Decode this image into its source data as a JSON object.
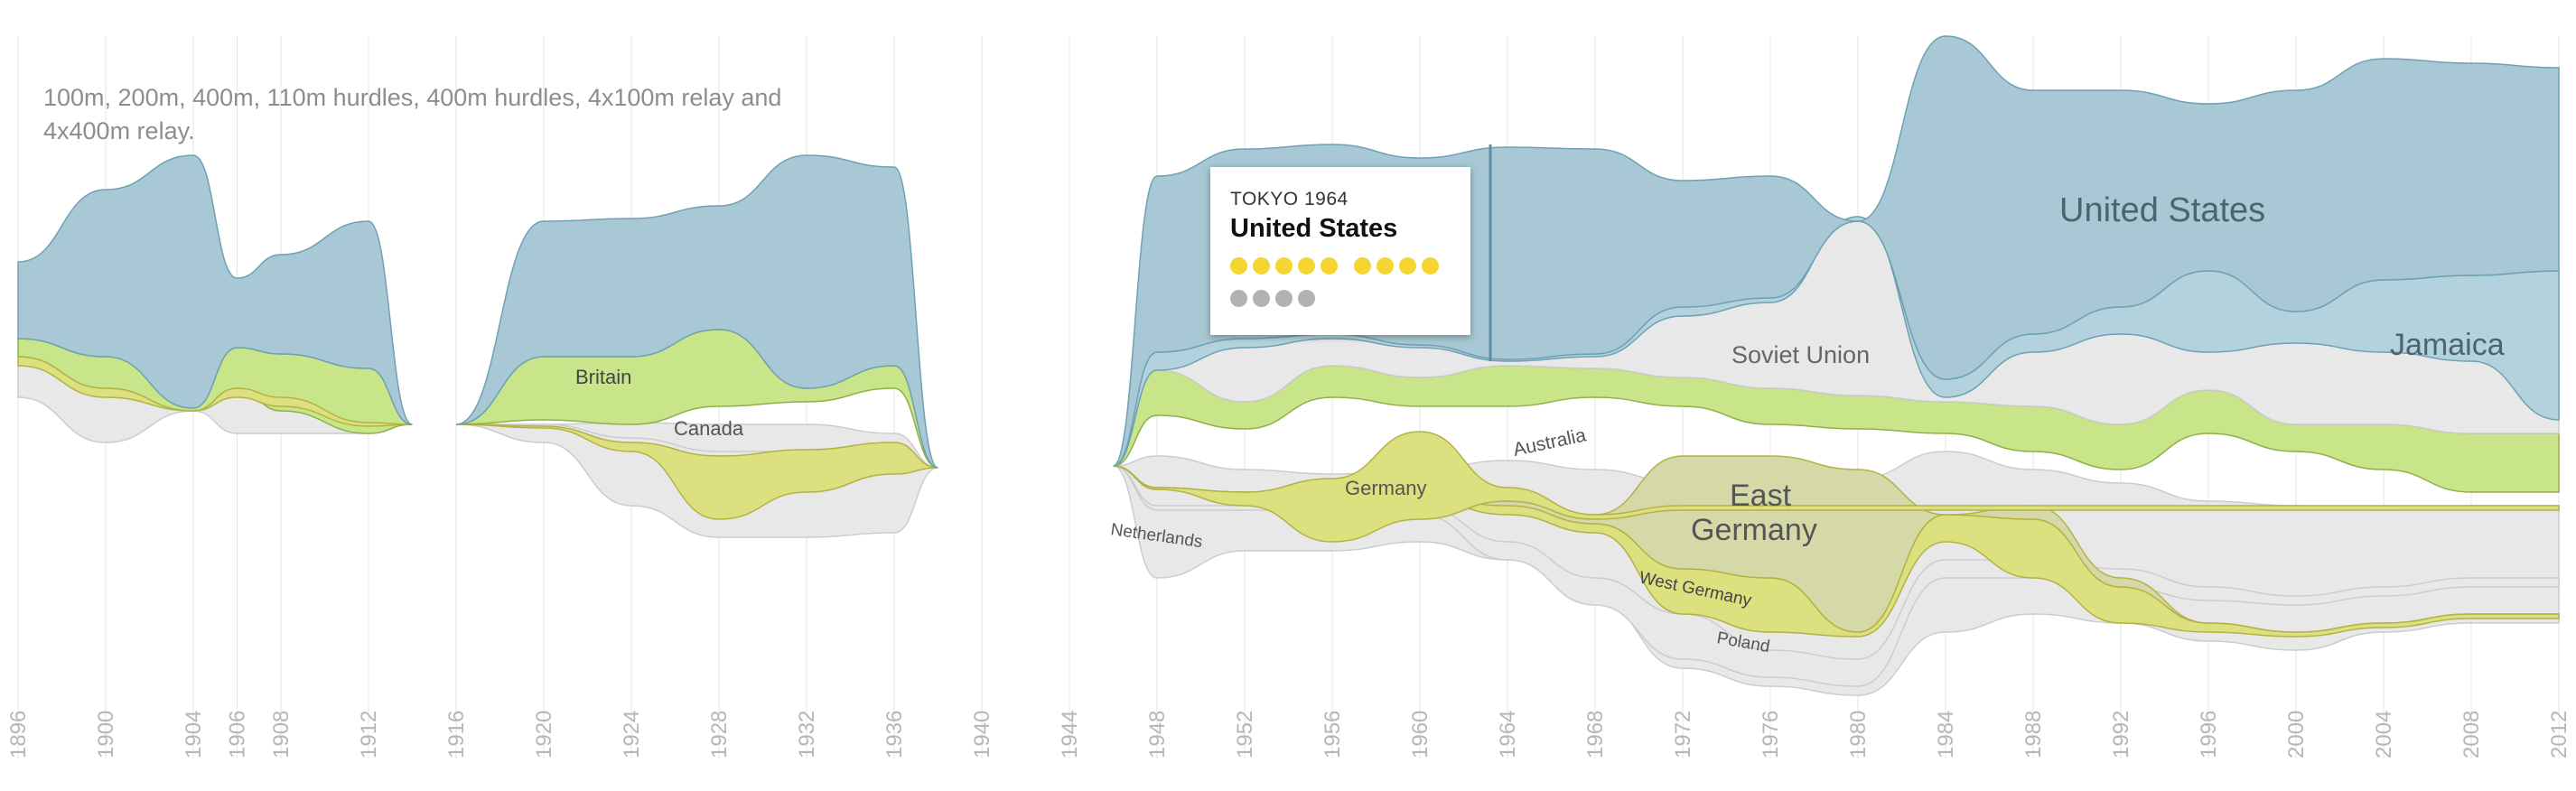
{
  "note": "100m, 200m, 400m, 110m hurdles, 400m hurdles, 4x100m relay and 4x400m relay.",
  "tooltip": {
    "event": "TOKYO 1964",
    "country": "United States",
    "medals": [
      {
        "type": "gold",
        "count": 5
      },
      {
        "type": "gold",
        "count": 4
      },
      {
        "type": "other",
        "count": 4
      }
    ]
  },
  "colors": {
    "us": "#a7c8d4",
    "us_line": "#6fa1b5",
    "jamaica": "#b4d2dd",
    "britain": "#c9e58a",
    "britain_line": "#8fb04a",
    "germany": "#dde07f",
    "germany_line": "#b2b344",
    "east_germany": "#d5d9a7",
    "other": "#e8e8e8",
    "other_line": "#cccccc",
    "grid": "#e6e6e6"
  },
  "chart_data": {
    "type": "area",
    "title": "",
    "xlabel": "",
    "ylabel": "",
    "x_ticks": [
      1896,
      1900,
      1904,
      1906,
      1908,
      1912,
      1916,
      1920,
      1924,
      1928,
      1932,
      1936,
      1940,
      1944,
      1948,
      1952,
      1956,
      1960,
      1964,
      1968,
      1972,
      1976,
      1980,
      1984,
      1988,
      1992,
      1996,
      2000,
      2004,
      2008,
      2012
    ],
    "games_without_data": [
      1916,
      1940,
      1944
    ],
    "highlighted_year": 1964,
    "series": [
      {
        "name": "United States",
        "x": [
          1896,
          1900,
          1904,
          1906,
          1908,
          1912,
          1920,
          1924,
          1928,
          1932,
          1936,
          1948,
          1952,
          1956,
          1960,
          1964,
          1968,
          1972,
          1976,
          1980,
          1984,
          1988,
          1992,
          1996,
          2000,
          2004,
          2008,
          2012
        ],
        "values": [
          6,
          9,
          15,
          4,
          5,
          8,
          8,
          8,
          8,
          10,
          9,
          9,
          10,
          10,
          9,
          13,
          12,
          10,
          11,
          0,
          16,
          12,
          11,
          10,
          8,
          10,
          9,
          9
        ]
      },
      {
        "name": "Jamaica",
        "x": [
          1948,
          1952,
          1956,
          1960,
          1964,
          1968,
          1972,
          1976,
          1980,
          1984,
          1988,
          1992,
          1996,
          2000,
          2004,
          2008,
          2012
        ],
        "values": [
          1,
          2,
          0,
          0,
          0,
          0,
          0,
          1,
          1,
          2,
          2,
          1,
          2,
          4,
          2,
          4,
          4
        ]
      },
      {
        "name": "Soviet Union",
        "x": [
          1952,
          1956,
          1960,
          1964,
          1968,
          1972,
          1976,
          1980,
          1984,
          1988,
          1992
        ],
        "values": [
          1,
          1,
          1,
          1,
          1,
          2,
          2,
          7,
          0,
          2,
          2
        ]
      },
      {
        "name": "Britain",
        "x": [
          1896,
          1900,
          1904,
          1906,
          1908,
          1912,
          1920,
          1924,
          1928,
          1932,
          1936,
          1948,
          1952,
          1956,
          1960,
          1964,
          1968,
          1972,
          1976,
          1980,
          1984,
          1988,
          1992,
          1996,
          2000,
          2004,
          2008,
          2012
        ],
        "values": [
          1,
          1,
          0,
          2,
          2,
          1,
          3,
          3,
          3,
          2,
          3,
          2,
          1,
          2,
          2,
          2,
          2,
          2,
          1,
          1,
          1,
          2,
          2,
          3,
          1,
          1,
          1,
          1
        ]
      },
      {
        "name": "Canada",
        "x": [
          1904,
          1906,
          1908,
          1912,
          1920,
          1924,
          1928,
          1932,
          1936
        ],
        "values": [
          1,
          0,
          1,
          1,
          0,
          1,
          2,
          2,
          2
        ]
      },
      {
        "name": "Australia",
        "x": [
          1948,
          1952,
          1956,
          1960,
          1964,
          1968,
          1972,
          1976,
          1980,
          1984,
          1988,
          1992,
          1996,
          2000,
          2004,
          2008,
          2012
        ],
        "values": [
          1,
          1,
          2,
          1,
          1,
          2,
          1,
          0,
          1,
          1,
          0,
          1,
          1,
          1,
          0,
          0,
          0
        ]
      },
      {
        "name": "Germany",
        "x": [
          1928,
          1932,
          1936,
          1952,
          1956,
          1960,
          1964
        ],
        "values": [
          3,
          1,
          2,
          2,
          2,
          4,
          2
        ]
      },
      {
        "name": "East Germany",
        "x": [
          1968,
          1972,
          1976,
          1980,
          1988
        ],
        "values": [
          1,
          5,
          6,
          5,
          4
        ]
      },
      {
        "name": "West Germany",
        "x": [
          1968,
          1972,
          1976,
          1980,
          1984,
          1988
        ],
        "values": [
          2,
          3,
          3,
          0,
          2,
          1
        ]
      },
      {
        "name": "Netherlands",
        "x": [
          1948,
          1952
        ],
        "values": [
          1,
          0
        ]
      },
      {
        "name": "Poland",
        "x": [
          1964,
          1968,
          1972,
          1976,
          1980
        ],
        "values": [
          1,
          1,
          1,
          1,
          1
        ]
      }
    ]
  }
}
